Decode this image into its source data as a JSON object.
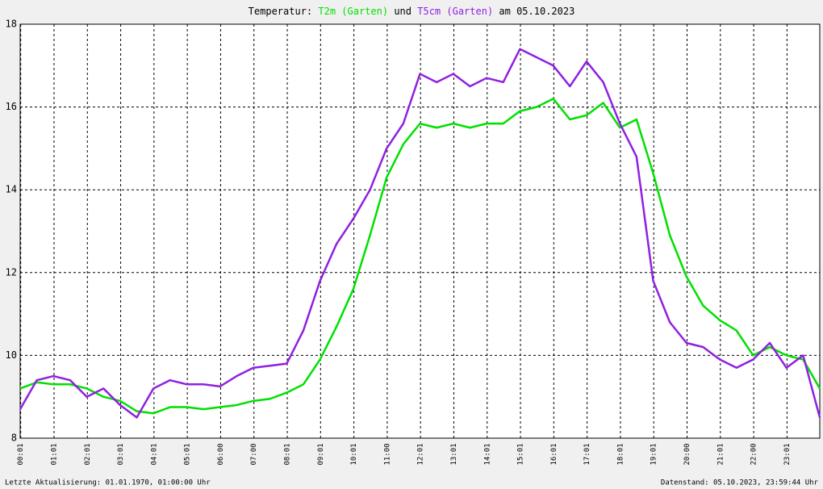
{
  "chart_data": {
    "type": "line",
    "title_parts": [
      "Temperatur:",
      "und",
      "am 05.10.2023"
    ],
    "footer_left": "Letzte Aktualisierung: 01.01.1970, 01:00:00 Uhr",
    "footer_right": "Datenstand: 05.10.2023, 23:59:44 Uhr",
    "x": [
      0,
      30,
      60,
      90,
      120,
      150,
      180,
      210,
      240,
      270,
      300,
      330,
      360,
      390,
      420,
      450,
      480,
      510,
      540,
      570,
      600,
      630,
      660,
      690,
      720,
      750,
      780,
      810,
      840,
      870,
      900,
      930,
      960,
      990,
      1020,
      1050,
      1080,
      1110,
      1140,
      1170,
      1200,
      1230,
      1260,
      1290,
      1320,
      1350,
      1380,
      1410,
      1440
    ],
    "series": [
      {
        "name": "T2m (Garten)",
        "color": "#00e000",
        "values": [
          9.2,
          9.35,
          9.3,
          9.3,
          9.2,
          9.0,
          8.9,
          8.65,
          8.6,
          8.75,
          8.75,
          8.7,
          8.75,
          8.8,
          8.9,
          8.95,
          9.1,
          9.3,
          9.9,
          10.7,
          11.6,
          12.9,
          14.3,
          15.1,
          15.6,
          15.5,
          15.6,
          15.5,
          15.6,
          15.6,
          15.9,
          16.0,
          16.2,
          15.7,
          15.8,
          16.1,
          15.5,
          15.7,
          14.4,
          12.9,
          11.9,
          11.2,
          10.85,
          10.6,
          10.0,
          10.2,
          10.0,
          9.9,
          9.2
        ]
      },
      {
        "name": "T5cm (Garten)",
        "color": "#9020e0",
        "values": [
          8.7,
          9.4,
          9.5,
          9.4,
          9.0,
          9.2,
          8.8,
          8.5,
          9.2,
          9.4,
          9.3,
          9.3,
          9.25,
          9.5,
          9.7,
          9.75,
          9.8,
          10.6,
          11.8,
          12.7,
          13.3,
          14.0,
          15.0,
          15.6,
          16.8,
          16.6,
          16.8,
          16.5,
          16.7,
          16.6,
          17.4,
          17.2,
          17.0,
          16.5,
          17.1,
          16.6,
          15.6,
          14.8,
          11.8,
          10.8,
          10.3,
          10.2,
          9.9,
          9.7,
          9.9,
          10.3,
          9.7,
          10.0,
          8.5
        ]
      }
    ],
    "xlim": [
      0,
      1440
    ],
    "xticks": [
      {
        "value": 1,
        "label": "00:01"
      },
      {
        "value": 61,
        "label": "01:01"
      },
      {
        "value": 121,
        "label": "02:01"
      },
      {
        "value": 181,
        "label": "03:01"
      },
      {
        "value": 241,
        "label": "04:01"
      },
      {
        "value": 301,
        "label": "05:01"
      },
      {
        "value": 361,
        "label": "06:00"
      },
      {
        "value": 421,
        "label": "07:00"
      },
      {
        "value": 481,
        "label": "08:01"
      },
      {
        "value": 541,
        "label": "09:01"
      },
      {
        "value": 601,
        "label": "10:01"
      },
      {
        "value": 661,
        "label": "11:00"
      },
      {
        "value": 721,
        "label": "12:01"
      },
      {
        "value": 781,
        "label": "13:01"
      },
      {
        "value": 841,
        "label": "14:01"
      },
      {
        "value": 901,
        "label": "15:01"
      },
      {
        "value": 961,
        "label": "16:01"
      },
      {
        "value": 1021,
        "label": "17:01"
      },
      {
        "value": 1081,
        "label": "18:01"
      },
      {
        "value": 1141,
        "label": "19:01"
      },
      {
        "value": 1201,
        "label": "20:00"
      },
      {
        "value": 1261,
        "label": "21:01"
      },
      {
        "value": 1321,
        "label": "22:00"
      },
      {
        "value": 1381,
        "label": "23:01"
      }
    ],
    "ylim": [
      8,
      18
    ],
    "yticks": [
      8,
      10,
      12,
      14,
      16,
      18
    ],
    "grid": true
  }
}
